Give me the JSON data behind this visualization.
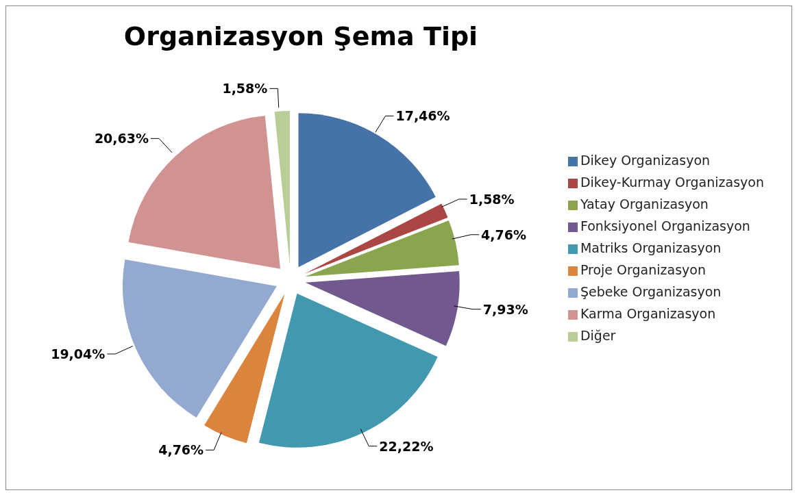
{
  "chart_data": {
    "type": "pie",
    "title": "Organizasyon Şema Tipi",
    "categories": [
      "Dikey Organizasyon",
      "Dikey-Kurmay Organizasyon",
      "Yatay Organizasyon",
      "Fonksiyonel Organizasyon",
      "Matriks Organizasyon",
      "Proje Organizasyon",
      "Şebeke Organizasyon",
      "Karma Organizasyon",
      "Diğer"
    ],
    "values": [
      17.46,
      1.58,
      4.76,
      7.93,
      22.22,
      4.76,
      19.04,
      20.63,
      1.58
    ],
    "value_labels": [
      "17,46%",
      "1,58%",
      "4,76%",
      "7,93%",
      "22,22%",
      "4,76%",
      "19,04%",
      "20,63%",
      "1,58%"
    ],
    "colors": [
      "#4572a7",
      "#aa4643",
      "#89a54e",
      "#71588f",
      "#4198af",
      "#db843d",
      "#93a9cf",
      "#d19392",
      "#b9cd96"
    ],
    "legend": "right"
  }
}
